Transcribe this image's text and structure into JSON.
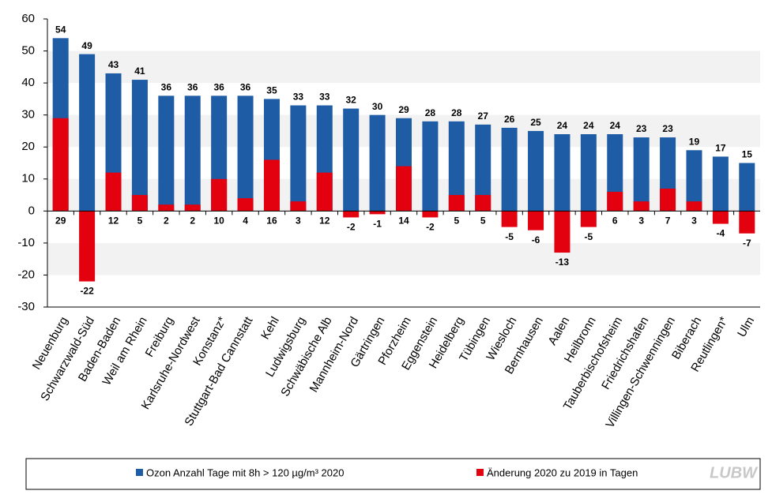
{
  "chart_data": {
    "type": "bar",
    "categories": [
      "Neuenburg",
      "Schwarzwald-Süd",
      "Baden-Baden",
      "Weil am Rhein",
      "Freiburg",
      "Karlsruhe-Nordwest",
      "Konstanz*",
      "Stuttgart-Bad Cannstatt",
      "Kehl",
      "Ludwigsburg",
      "Schwäbische Alb",
      "Mannheim-Nord",
      "Gärtringen",
      "Pforzheim",
      "Eggenstein",
      "Heidelberg",
      "Tübingen",
      "Wiesloch",
      "Bernhausen",
      "Aalen",
      "Heilbronn",
      "Tauberbischofsheim",
      "Friedrichshafen",
      "Villingen-Schwenningen",
      "Biberach",
      "Reutlingen*",
      "Ulm"
    ],
    "series": [
      {
        "name": "Ozon Anzahl Tage mit 8h > 120 µg/m³ 2020",
        "color": "#1f5ca6",
        "values": [
          54,
          49,
          43,
          41,
          36,
          36,
          36,
          36,
          35,
          33,
          33,
          32,
          30,
          29,
          28,
          28,
          27,
          26,
          25,
          24,
          24,
          24,
          23,
          23,
          19,
          17,
          15
        ]
      },
      {
        "name": "Änderung 2020 zu 2019 in Tagen",
        "color": "#e3000f",
        "values": [
          29,
          -22,
          12,
          5,
          2,
          2,
          10,
          4,
          16,
          3,
          12,
          -2,
          -1,
          14,
          -2,
          5,
          5,
          -5,
          -6,
          -13,
          -5,
          6,
          3,
          7,
          3,
          -4,
          -7
        ]
      }
    ],
    "ylim": [
      -30,
      60
    ],
    "yticks": [
      -30,
      -20,
      -10,
      0,
      10,
      20,
      30,
      40,
      50,
      60
    ],
    "logo": "LUBW"
  }
}
